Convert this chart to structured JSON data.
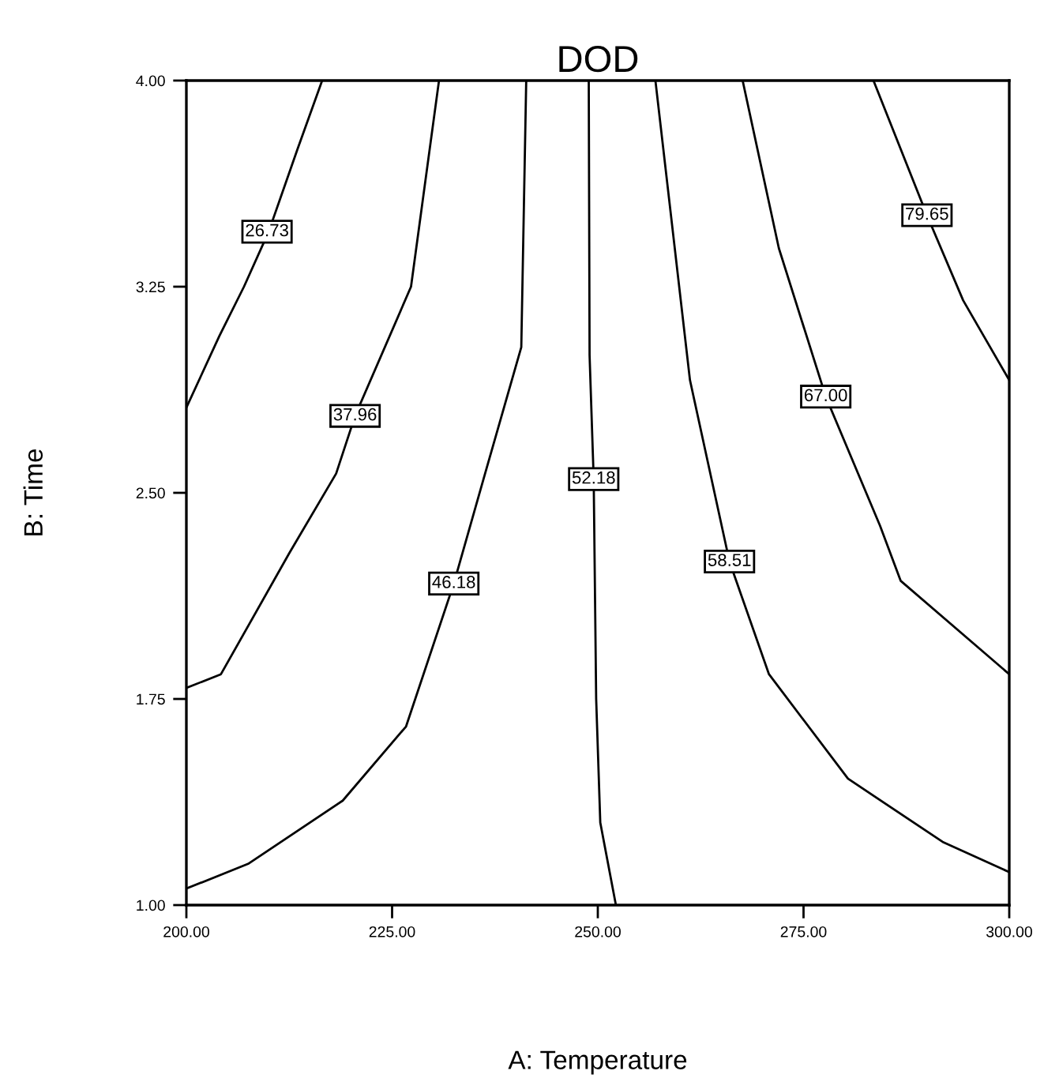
{
  "chart_data": {
    "type": "line",
    "title": "DOD",
    "xlabel": "A: Temperature",
    "ylabel": "B: Time",
    "xlim": [
      200,
      300
    ],
    "ylim": [
      1,
      4
    ],
    "xticks": [
      {
        "value": 200,
        "label": "200.00"
      },
      {
        "value": 225,
        "label": "225.00"
      },
      {
        "value": 250,
        "label": "250.00"
      },
      {
        "value": 275,
        "label": "275.00"
      },
      {
        "value": 300,
        "label": "300.00"
      }
    ],
    "yticks": [
      {
        "value": 1,
        "label": "1.00"
      },
      {
        "value": 1.75,
        "label": "1.75"
      },
      {
        "value": 2.5,
        "label": "2.50"
      },
      {
        "value": 3.25,
        "label": "3.25"
      },
      {
        "value": 4,
        "label": "4.00"
      }
    ],
    "grid": false,
    "legend": false,
    "marker": "none",
    "line_style": "solid",
    "series": [
      {
        "color": "#000000",
        "x": [
          216.5,
          213.5,
          210,
          207,
          204,
          200
        ],
        "values": [
          4.0,
          3.75,
          3.45,
          3.25,
          3.07,
          2.81
        ]
      },
      {
        "color": "#000000",
        "x": [
          230.7,
          227.3,
          220.5,
          218.2,
          212.5,
          204.2,
          200
        ],
        "values": [
          4.0,
          3.25,
          2.78,
          2.57,
          2.28,
          1.84,
          1.79
        ]
      },
      {
        "color": "#000000",
        "x": [
          241.3,
          240.7,
          236.3,
          232.5,
          226.7,
          219,
          207.5,
          200
        ],
        "values": [
          4.0,
          3.03,
          2.57,
          2.17,
          1.65,
          1.38,
          1.15,
          1.06
        ]
      },
      {
        "color": "#000000",
        "x": [
          248.9,
          249.0,
          249.5,
          249.8,
          250.3,
          252.2
        ],
        "values": [
          4.0,
          3.0,
          2.55,
          1.75,
          1.3,
          1.0
        ]
      },
      {
        "color": "#000000",
        "x": [
          257,
          261.2,
          266,
          270.8,
          280.4,
          291.9,
          300
        ],
        "values": [
          4.0,
          2.91,
          2.25,
          1.84,
          1.46,
          1.23,
          1.12
        ]
      },
      {
        "color": "#000000",
        "x": [
          267.6,
          272,
          277.7,
          284.3,
          286.8,
          300
        ],
        "values": [
          4.0,
          3.39,
          2.85,
          2.38,
          2.18,
          1.84
        ]
      },
      {
        "color": "#000000",
        "x": [
          283.5,
          290,
          294.4,
          300
        ],
        "values": [
          4.0,
          3.51,
          3.2,
          2.91
        ]
      }
    ],
    "annotations": [
      {
        "text": "26.73",
        "x": 209.8,
        "y": 3.45
      },
      {
        "text": "37.96",
        "x": 220.5,
        "y": 2.78
      },
      {
        "text": "46.18",
        "x": 232.5,
        "y": 2.17
      },
      {
        "text": "52.18",
        "x": 249.5,
        "y": 2.55
      },
      {
        "text": "58.51",
        "x": 266,
        "y": 2.25
      },
      {
        "text": "67.00",
        "x": 277.7,
        "y": 2.85
      },
      {
        "text": "79.65",
        "x": 290,
        "y": 3.51
      }
    ]
  }
}
